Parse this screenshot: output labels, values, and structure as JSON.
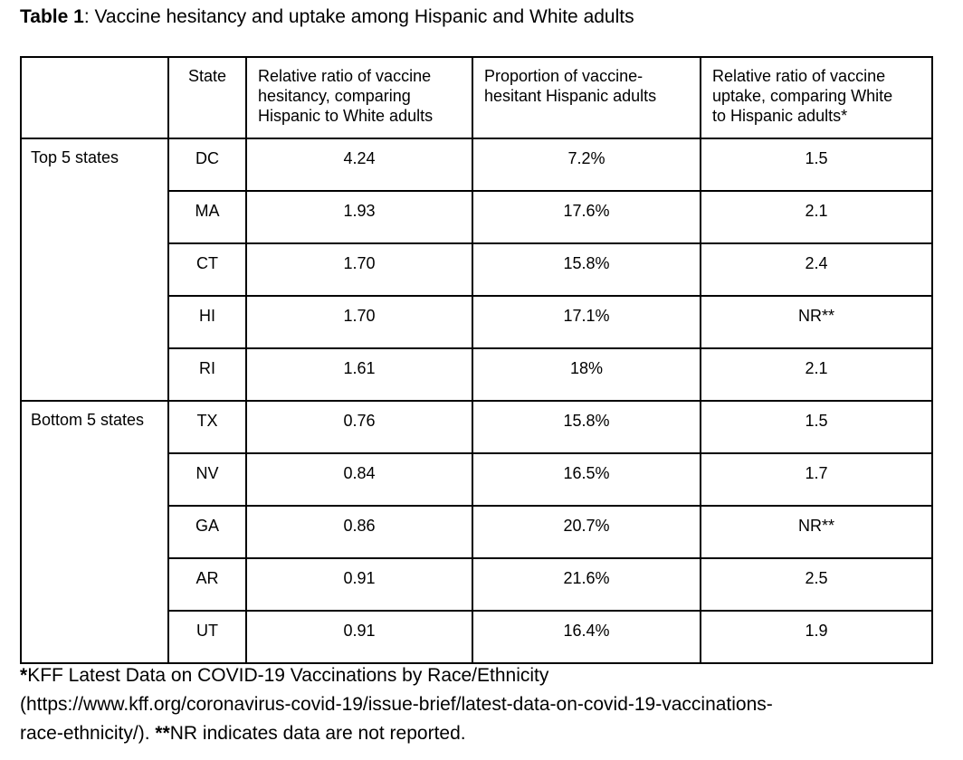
{
  "caption": {
    "label": "Table 1",
    "text": ": Vaccine hesitancy and uptake among Hispanic and White adults"
  },
  "table": {
    "headers": {
      "group": "",
      "state": "State",
      "hesitancy_lines": [
        "Relative ratio of vaccine",
        "hesitancy, comparing",
        "Hispanic to White adults"
      ],
      "proportion_lines": [
        "Proportion of vaccine-",
        "hesitant Hispanic adults"
      ],
      "uptake_lines": [
        "Relative ratio of vaccine",
        "uptake, comparing White",
        "to Hispanic adults*"
      ]
    },
    "groups": [
      {
        "label": "Top 5 states",
        "rows": [
          {
            "state": "DC",
            "hesitancy_ratio": "4.24",
            "hesitant_proportion": "7.2%",
            "uptake_ratio": "1.5"
          },
          {
            "state": "MA",
            "hesitancy_ratio": "1.93",
            "hesitant_proportion": "17.6%",
            "uptake_ratio": "2.1"
          },
          {
            "state": "CT",
            "hesitancy_ratio": "1.70",
            "hesitant_proportion": "15.8%",
            "uptake_ratio": "2.4"
          },
          {
            "state": "HI",
            "hesitancy_ratio": "1.70",
            "hesitant_proportion": "17.1%",
            "uptake_ratio": "NR**"
          },
          {
            "state": "RI",
            "hesitancy_ratio": "1.61",
            "hesitant_proportion": "18%",
            "uptake_ratio": "2.1"
          }
        ]
      },
      {
        "label": "Bottom 5 states",
        "rows": [
          {
            "state": "TX",
            "hesitancy_ratio": "0.76",
            "hesitant_proportion": "15.8%",
            "uptake_ratio": "1.5"
          },
          {
            "state": "NV",
            "hesitancy_ratio": "0.84",
            "hesitant_proportion": "16.5%",
            "uptake_ratio": "1.7"
          },
          {
            "state": "GA",
            "hesitancy_ratio": "0.86",
            "hesitant_proportion": "20.7%",
            "uptake_ratio": "NR**"
          },
          {
            "state": "AR",
            "hesitancy_ratio": "0.91",
            "hesitant_proportion": "21.6%",
            "uptake_ratio": "2.5"
          },
          {
            "state": "UT",
            "hesitancy_ratio": "0.91",
            "hesitant_proportion": "16.4%",
            "uptake_ratio": "1.9"
          }
        ]
      }
    ]
  },
  "footnote": {
    "star1": "*",
    "line1": "KFF Latest Data on COVID-19 Vaccinations by Race/Ethnicity",
    "line2": "(https://www.kff.org/coronavirus-covid-19/issue-brief/latest-data-on-covid-19-vaccinations-",
    "line3_pre": "race-ethnicity/). ",
    "star2": "**",
    "line3_post": "NR indicates data are not reported."
  },
  "colors": {
    "text": "#000000",
    "border": "#000000",
    "background": "#ffffff"
  }
}
